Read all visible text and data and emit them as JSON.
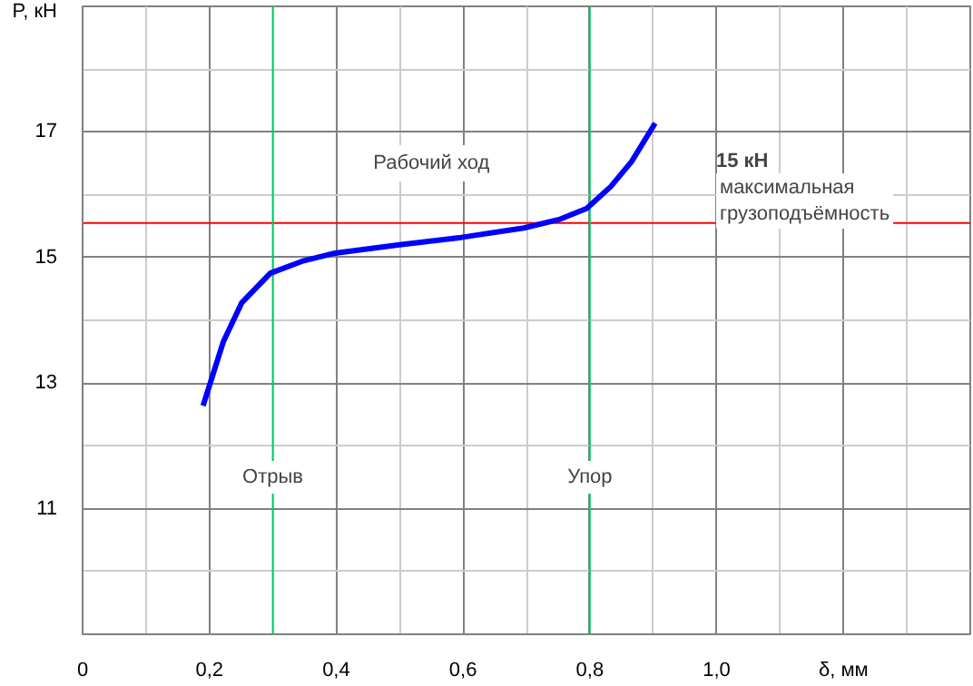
{
  "chart_data": {
    "type": "line",
    "xlabel": "δ, мм",
    "ylabel": "P, кН",
    "x": [
      0.19,
      0.222,
      0.251,
      0.296,
      0.346,
      0.398,
      0.497,
      0.597,
      0.696,
      0.753,
      0.795,
      0.833,
      0.866,
      0.903
    ],
    "series": [
      {
        "color": "#0000ff",
        "values": [
          12.64,
          13.66,
          14.28,
          14.75,
          14.94,
          15.07,
          15.2,
          15.32,
          15.47,
          15.61,
          15.78,
          16.13,
          16.53,
          17.14
        ]
      }
    ],
    "xlim": [
      0,
      1.4
    ],
    "ylim": [
      9,
      19
    ],
    "xticks": [
      0,
      {
        "value": 0.2,
        "label": "0,2"
      },
      {
        "value": 0.4,
        "label": "0,4"
      },
      {
        "value": 0.6,
        "label": "0,6"
      },
      {
        "value": 0.8,
        "label": "0,8"
      },
      {
        "value": 1.0,
        "label": "1,0"
      },
      {
        "value": 1.2,
        "label": null
      },
      {
        "value": 1.4,
        "label": null
      }
    ],
    "yticks": [
      {
        "value": 9,
        "label": null
      },
      11,
      13,
      15,
      17,
      {
        "value": 19,
        "label": null
      }
    ],
    "ref_lines": [
      {
        "axis": "y",
        "value": 15.55,
        "label": "15 кН",
        "color": "#ff0000"
      },
      {
        "axis": "x",
        "value": 0.3,
        "label": "Отрыв",
        "color": "#00cc66"
      },
      {
        "axis": "x",
        "value": 0.8,
        "label": "Упор",
        "color": "#00cc66"
      }
    ],
    "annotations": [
      "Рабочий ход",
      "максимальная\nгрузоподъёмность"
    ],
    "grid": true,
    "marker": "none",
    "line_style": "solid"
  }
}
